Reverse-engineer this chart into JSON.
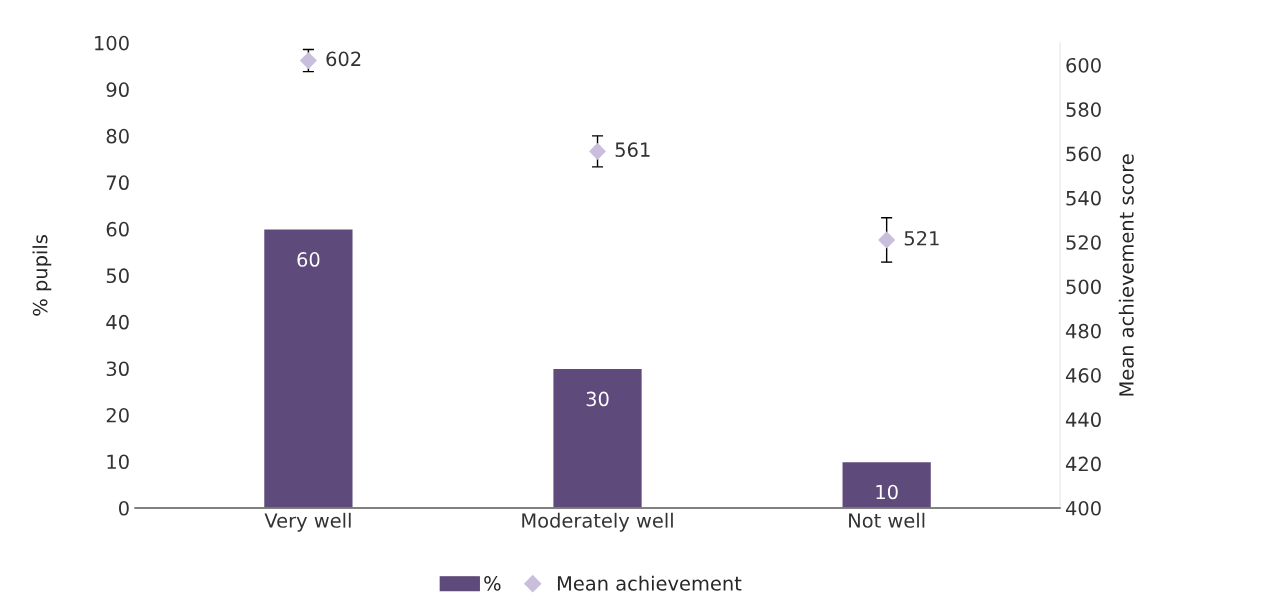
{
  "chart_data": {
    "type": "bar",
    "categories": [
      "Very well",
      "Moderately well",
      "Not well"
    ],
    "series": [
      {
        "name": "%",
        "color": "#5e4a7b",
        "values": [
          60,
          30,
          10
        ]
      },
      {
        "name": "Mean achievement",
        "type": "scatter",
        "axis": "y2",
        "color": "#c9bfdc",
        "marker": "diamond",
        "values": [
          602,
          561,
          521
        ],
        "errors": [
          5,
          7,
          10
        ]
      }
    ],
    "ylabel": "% pupils",
    "y2label": "Mean achievement score",
    "ylim": [
      0,
      100
    ],
    "yticks": [
      0,
      10,
      20,
      30,
      40,
      50,
      60,
      70,
      80,
      90,
      100
    ],
    "y2lim": [
      400,
      610
    ],
    "y2ticks": [
      400,
      420,
      440,
      460,
      480,
      500,
      520,
      540,
      560,
      580,
      600
    ],
    "data_labels": true,
    "grid": false,
    "legend": "bottom"
  }
}
